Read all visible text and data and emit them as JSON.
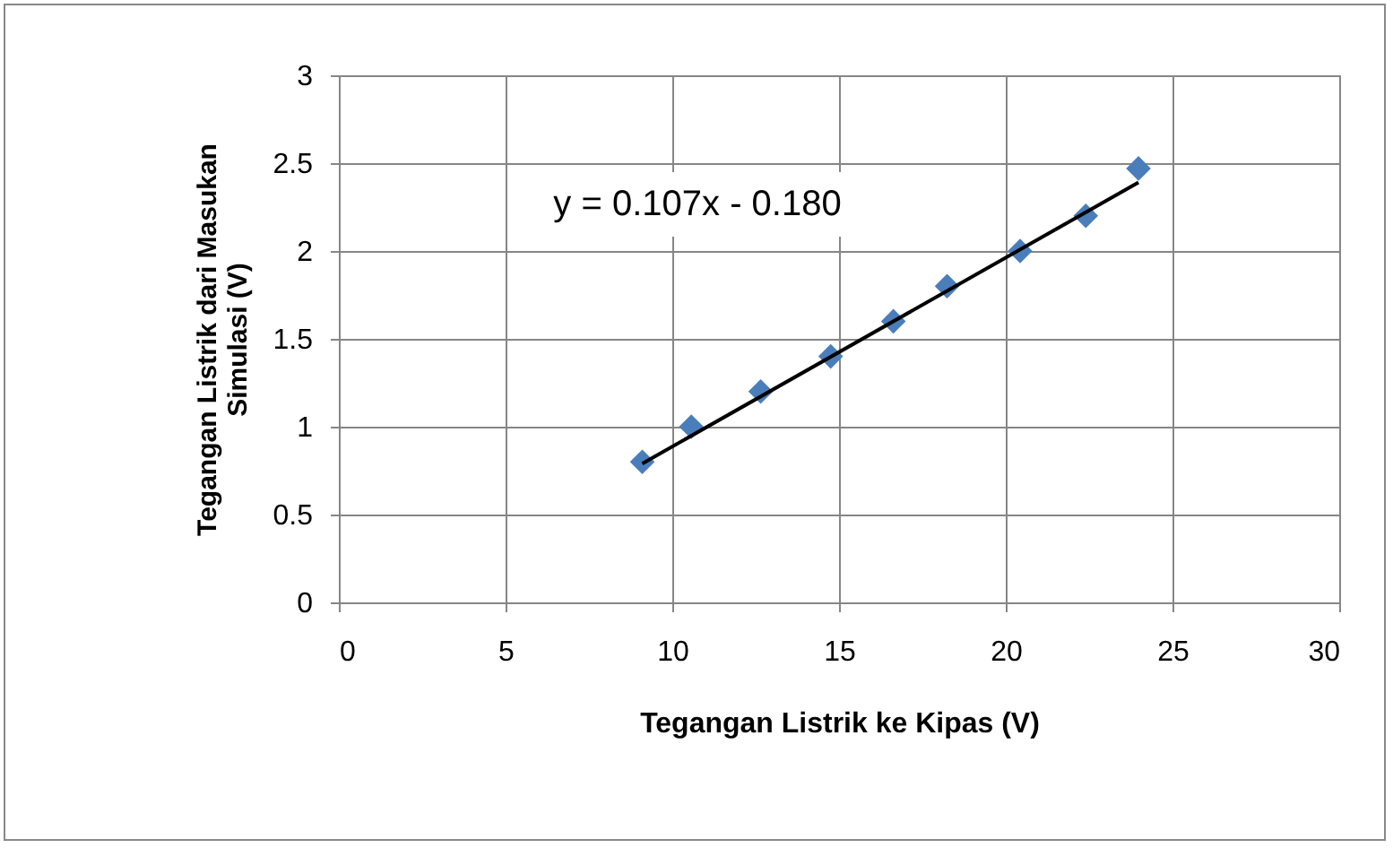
{
  "chart_data": {
    "type": "scatter",
    "xlabel": "Tegangan Listrik ke Kipas (V)",
    "ylabel": "Tegangan Listrik dari Masukan Simulasi (V)",
    "annotations": [
      "y = 0.107x - 0.180"
    ],
    "series": [
      {
        "color": "#4a7ebb",
        "marker": "diamond",
        "x": [
          9.1,
          10.57,
          12.65,
          14.75,
          16.63,
          18.24,
          20.43,
          22.4,
          23.98
        ],
        "values": [
          0.8,
          1.0,
          1.2,
          1.4,
          1.6,
          1.8,
          2.0,
          2.2,
          2.47
        ]
      },
      {
        "type": "line",
        "color": "#000000",
        "x": [
          9.1,
          23.98
        ],
        "values": [
          0.79,
          2.39
        ]
      }
    ],
    "xlim": [
      0,
      30
    ],
    "xticks": [
      0,
      5,
      10,
      15,
      20,
      25,
      30
    ],
    "ylim": [
      0,
      3
    ],
    "yticks": [
      0,
      0.5,
      1,
      1.5,
      2,
      2.5,
      3
    ],
    "grid": true
  }
}
